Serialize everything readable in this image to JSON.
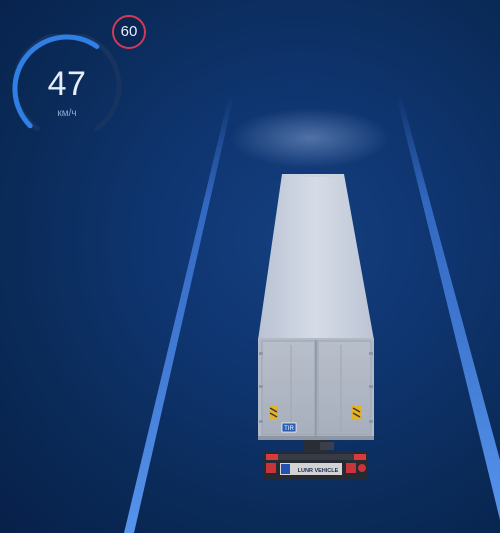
{
  "hud": {
    "current_speed": "47",
    "speed_unit": "км/ч",
    "speed_limit": "60",
    "speed_limit_ring_color": "#d23a57",
    "speed_gauge_fraction": 0.63
  },
  "truck": {
    "tir_plate": "TIR",
    "rear_plate_text": "LUNR VEHICLE",
    "brand_stripe_color": "#d3d3d3"
  },
  "colors": {
    "background": "#0a2a57",
    "gauge_arc": "#2f7fe4",
    "lane_lines": "#4f90ff"
  }
}
